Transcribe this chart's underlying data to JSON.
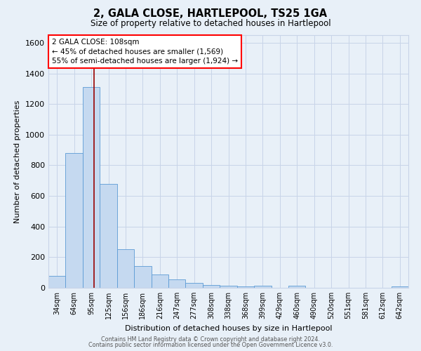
{
  "title": "2, GALA CLOSE, HARTLEPOOL, TS25 1GA",
  "subtitle": "Size of property relative to detached houses in Hartlepool",
  "xlabel": "Distribution of detached houses by size in Hartlepool",
  "ylabel": "Number of detached properties",
  "bar_labels": [
    "34sqm",
    "64sqm",
    "95sqm",
    "125sqm",
    "156sqm",
    "186sqm",
    "216sqm",
    "247sqm",
    "277sqm",
    "308sqm",
    "338sqm",
    "368sqm",
    "399sqm",
    "429sqm",
    "460sqm",
    "490sqm",
    "520sqm",
    "551sqm",
    "581sqm",
    "612sqm",
    "642sqm"
  ],
  "bar_values": [
    80,
    880,
    1310,
    680,
    250,
    140,
    85,
    55,
    30,
    20,
    12,
    10,
    14,
    0,
    12,
    0,
    0,
    0,
    0,
    0,
    8
  ],
  "bar_color": "#c5d9f0",
  "bar_edgecolor": "#5b9bd5",
  "vline_x_index": 2,
  "vline_x_offset": 0.18,
  "vline_color": "#990000",
  "annotation_box_text": "2 GALA CLOSE: 108sqm\n← 45% of detached houses are smaller (1,569)\n55% of semi-detached houses are larger (1,924) →",
  "ylim": [
    0,
    1650
  ],
  "yticks": [
    0,
    200,
    400,
    600,
    800,
    1000,
    1200,
    1400,
    1600
  ],
  "grid_color": "#c8d4e8",
  "bg_color": "#e8f0f8",
  "footer_line1": "Contains HM Land Registry data © Crown copyright and database right 2024.",
  "footer_line2": "Contains public sector information licensed under the Open Government Licence v3.0."
}
